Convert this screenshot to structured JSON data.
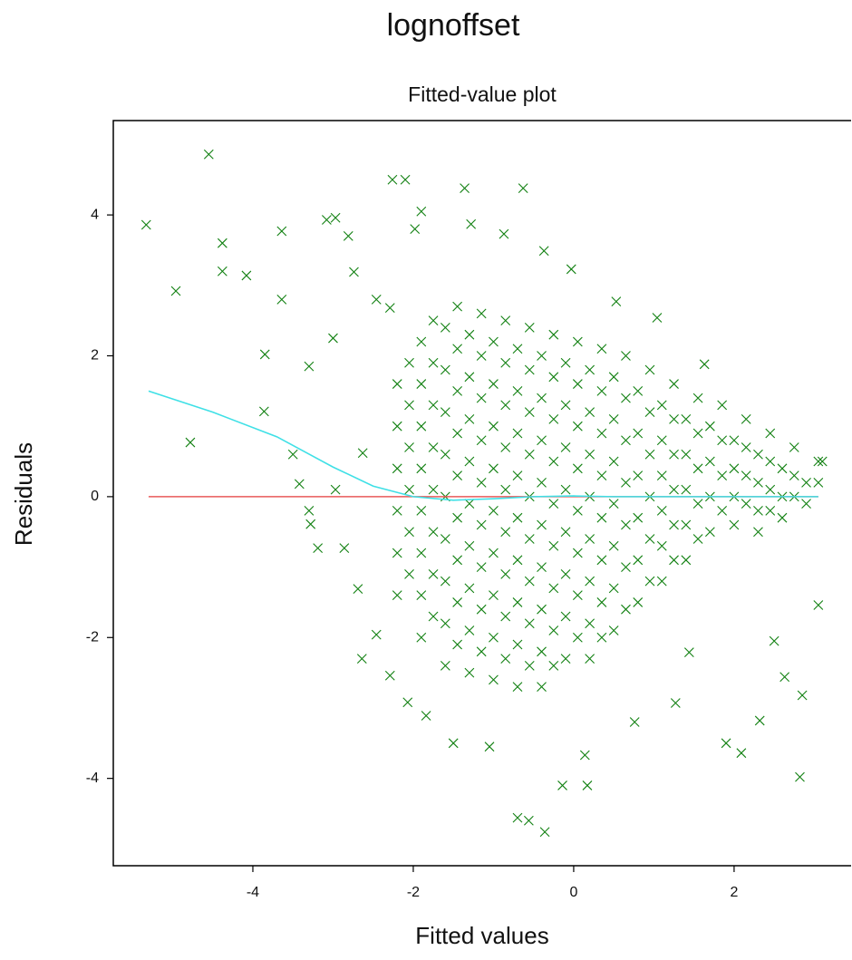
{
  "chart_data": {
    "type": "scatter",
    "title": "lognoffset",
    "subtitle": "Fitted-value plot",
    "xlabel": "Fitted values",
    "ylabel": "Residuals",
    "xlim": [
      -5.74,
      3.47
    ],
    "ylim": [
      -5.24,
      5.34
    ],
    "xticks": [
      -4,
      -2,
      0,
      2
    ],
    "yticks": [
      -4,
      -2,
      0,
      2,
      4
    ],
    "grid": false,
    "series": [
      {
        "type": "scatter",
        "marker": "x",
        "color": "#118011",
        "x": [
          -5.33,
          -4.55,
          -4.96,
          -4.38,
          -4.38,
          -4.08,
          -4.78,
          -3.85,
          -3.64,
          -3.64,
          -3.86,
          -3.3,
          -3.0,
          -3.08,
          -2.97,
          -2.81,
          -2.74,
          -2.46,
          -2.29,
          -1.98,
          -1.9,
          -2.26,
          -2.1,
          -1.36,
          -0.63,
          -1.28,
          -0.87,
          -0.37,
          -0.03,
          0.53,
          1.04,
          1.63,
          3.1,
          3.05,
          2.82,
          2.09,
          2.32,
          1.9,
          2.5,
          2.63,
          2.85,
          0.14,
          0.76,
          1.27,
          1.44,
          -0.7,
          -0.56,
          -0.36,
          -0.14,
          0.17,
          -1.05,
          -1.5,
          -1.84,
          -2.07,
          -2.29,
          -2.46,
          -2.64,
          -2.69,
          -2.86,
          -2.97,
          -3.42,
          -3.19,
          -3.28,
          -2.63,
          -3.5,
          -3.3,
          -2.2,
          -2.2,
          -2.2,
          -2.2,
          -2.2,
          -2.2,
          -1.9,
          -1.9,
          -1.9,
          -1.9,
          -1.9,
          -1.9,
          -1.9,
          -1.9,
          -1.6,
          -1.6,
          -1.6,
          -1.6,
          -1.6,
          -1.6,
          -1.6,
          -1.6,
          -1.6,
          -1.3,
          -1.3,
          -1.3,
          -1.3,
          -1.3,
          -1.3,
          -1.3,
          -1.3,
          -1.3,
          -1.0,
          -1.0,
          -1.0,
          -1.0,
          -1.0,
          -1.0,
          -1.0,
          -1.0,
          -1.0,
          -0.7,
          -0.7,
          -0.7,
          -0.7,
          -0.7,
          -0.7,
          -0.7,
          -0.7,
          -0.7,
          -0.4,
          -0.4,
          -0.4,
          -0.4,
          -0.4,
          -0.4,
          -0.4,
          -0.4,
          -0.4,
          -0.1,
          -0.1,
          -0.1,
          -0.1,
          -0.1,
          -0.1,
          -0.1,
          -0.1,
          0.2,
          0.2,
          0.2,
          0.2,
          0.2,
          0.2,
          0.2,
          0.2,
          0.5,
          0.5,
          0.5,
          0.5,
          0.5,
          0.5,
          0.5,
          0.8,
          0.8,
          0.8,
          0.8,
          0.8,
          0.8,
          1.1,
          1.1,
          1.1,
          1.1,
          1.1,
          1.1,
          1.4,
          1.4,
          1.4,
          1.4,
          1.4,
          1.7,
          1.7,
          1.7,
          1.7,
          2.0,
          2.0,
          2.0,
          2.0,
          2.3,
          2.3,
          2.3,
          2.3,
          2.6,
          2.6,
          2.6,
          2.9,
          2.9,
          -2.05,
          -2.05,
          -2.05,
          -2.05,
          -2.05,
          -2.05,
          -1.75,
          -1.75,
          -1.75,
          -1.75,
          -1.75,
          -1.75,
          -1.75,
          -1.75,
          -1.45,
          -1.45,
          -1.45,
          -1.45,
          -1.45,
          -1.45,
          -1.45,
          -1.45,
          -1.45,
          -1.15,
          -1.15,
          -1.15,
          -1.15,
          -1.15,
          -1.15,
          -1.15,
          -1.15,
          -1.15,
          -0.85,
          -0.85,
          -0.85,
          -0.85,
          -0.85,
          -0.85,
          -0.85,
          -0.85,
          -0.85,
          -0.55,
          -0.55,
          -0.55,
          -0.55,
          -0.55,
          -0.55,
          -0.55,
          -0.55,
          -0.55,
          -0.25,
          -0.25,
          -0.25,
          -0.25,
          -0.25,
          -0.25,
          -0.25,
          -0.25,
          -0.25,
          0.05,
          0.05,
          0.05,
          0.05,
          0.05,
          0.05,
          0.05,
          0.05,
          0.35,
          0.35,
          0.35,
          0.35,
          0.35,
          0.35,
          0.35,
          0.35,
          0.65,
          0.65,
          0.65,
          0.65,
          0.65,
          0.65,
          0.65,
          0.95,
          0.95,
          0.95,
          0.95,
          0.95,
          0.95,
          1.25,
          1.25,
          1.25,
          1.25,
          1.25,
          1.25,
          1.55,
          1.55,
          1.55,
          1.55,
          1.55,
          1.85,
          1.85,
          1.85,
          1.85,
          2.15,
          2.15,
          2.15,
          2.15,
          2.45,
          2.45,
          2.45,
          2.45,
          2.75,
          2.75,
          2.75,
          3.05,
          3.05
        ],
        "values": [
          3.86,
          4.86,
          2.92,
          3.6,
          3.2,
          3.14,
          0.77,
          2.02,
          3.77,
          2.8,
          1.21,
          1.85,
          2.25,
          3.93,
          3.96,
          3.7,
          3.19,
          2.8,
          2.68,
          3.8,
          4.05,
          4.5,
          4.5,
          4.38,
          4.38,
          3.87,
          3.73,
          3.49,
          3.23,
          2.77,
          2.54,
          1.88,
          0.5,
          -1.54,
          -3.98,
          -3.64,
          -3.18,
          -3.5,
          -2.05,
          -2.56,
          -2.82,
          -3.67,
          -3.2,
          -2.93,
          -2.21,
          -4.56,
          -4.6,
          -4.76,
          -4.1,
          -4.1,
          -3.55,
          -3.5,
          -3.11,
          -2.92,
          -2.54,
          -1.96,
          -2.3,
          -1.31,
          -0.73,
          0.1,
          0.18,
          -0.73,
          -0.39,
          0.62,
          0.6,
          -0.2,
          1.6,
          1.0,
          0.4,
          -0.2,
          -0.8,
          -1.4,
          2.2,
          1.6,
          1.0,
          0.4,
          -0.2,
          -0.8,
          -1.4,
          -2.0,
          2.4,
          1.8,
          1.2,
          0.6,
          0.0,
          -0.6,
          -1.2,
          -1.8,
          -2.4,
          2.3,
          1.7,
          1.1,
          0.5,
          -0.1,
          -0.7,
          -1.3,
          -1.9,
          -2.5,
          2.2,
          1.6,
          1.0,
          0.4,
          -0.2,
          -0.8,
          -1.4,
          -2.0,
          -2.6,
          2.1,
          1.5,
          0.9,
          0.3,
          -0.3,
          -0.9,
          -1.5,
          -2.1,
          -2.7,
          2.0,
          1.4,
          0.8,
          0.2,
          -0.4,
          -1.0,
          -1.6,
          -2.2,
          -2.7,
          1.9,
          1.3,
          0.7,
          0.1,
          -0.5,
          -1.1,
          -1.7,
          -2.3,
          1.8,
          1.2,
          0.6,
          0.0,
          -0.6,
          -1.2,
          -1.8,
          -2.3,
          1.7,
          1.1,
          0.5,
          -0.1,
          -0.7,
          -1.3,
          -1.9,
          1.5,
          0.9,
          0.3,
          -0.3,
          -0.9,
          -1.5,
          1.3,
          0.8,
          0.3,
          -0.2,
          -0.7,
          -1.2,
          1.1,
          0.6,
          0.1,
          -0.4,
          -0.9,
          1.0,
          0.5,
          0.0,
          -0.5,
          0.8,
          0.4,
          0.0,
          -0.4,
          0.6,
          0.2,
          -0.2,
          -0.5,
          0.4,
          0.0,
          -0.3,
          0.2,
          -0.1,
          1.9,
          1.3,
          0.7,
          0.1,
          -0.5,
          -1.1,
          2.5,
          1.9,
          1.3,
          0.7,
          0.1,
          -0.5,
          -1.1,
          -1.7,
          2.7,
          2.1,
          1.5,
          0.9,
          0.3,
          -0.3,
          -0.9,
          -1.5,
          -2.1,
          2.6,
          2.0,
          1.4,
          0.8,
          0.2,
          -0.4,
          -1.0,
          -1.6,
          -2.2,
          2.5,
          1.9,
          1.3,
          0.7,
          0.1,
          -0.5,
          -1.1,
          -1.7,
          -2.3,
          2.4,
          1.8,
          1.2,
          0.6,
          0.0,
          -0.6,
          -1.2,
          -1.8,
          -2.4,
          2.3,
          1.7,
          1.1,
          0.5,
          -0.1,
          -0.7,
          -1.3,
          -1.9,
          -2.4,
          2.2,
          1.6,
          1.0,
          0.4,
          -0.2,
          -0.8,
          -1.4,
          -2.0,
          2.1,
          1.5,
          0.9,
          0.3,
          -0.3,
          -0.9,
          -1.5,
          -2.0,
          2.0,
          1.4,
          0.8,
          0.2,
          -0.4,
          -1.0,
          -1.6,
          1.8,
          1.2,
          0.6,
          0.0,
          -0.6,
          -1.2,
          1.6,
          1.1,
          0.6,
          0.1,
          -0.4,
          -0.9,
          1.4,
          0.9,
          0.4,
          -0.1,
          -0.6,
          1.3,
          0.8,
          0.3,
          -0.2,
          1.1,
          0.7,
          0.3,
          -0.1,
          0.9,
          0.5,
          0.1,
          -0.2,
          0.7,
          0.3,
          0.0,
          0.5,
          0.2
        ]
      },
      {
        "type": "line",
        "color": "#e85a5a",
        "x": [
          -5.3,
          3.05
        ],
        "values": [
          0,
          0
        ]
      },
      {
        "type": "line",
        "color": "#3fe0e6",
        "x": [
          -5.3,
          -4.5,
          -3.7,
          -3.0,
          -2.5,
          -2.0,
          -1.5,
          -1.0,
          -0.5,
          0,
          0.5,
          1.0,
          2.0,
          3.05
        ],
        "values": [
          1.5,
          1.2,
          0.85,
          0.42,
          0.15,
          0.0,
          -0.05,
          -0.03,
          0.0,
          0.01,
          0.0,
          0.0,
          0.0,
          0.0
        ]
      }
    ]
  }
}
